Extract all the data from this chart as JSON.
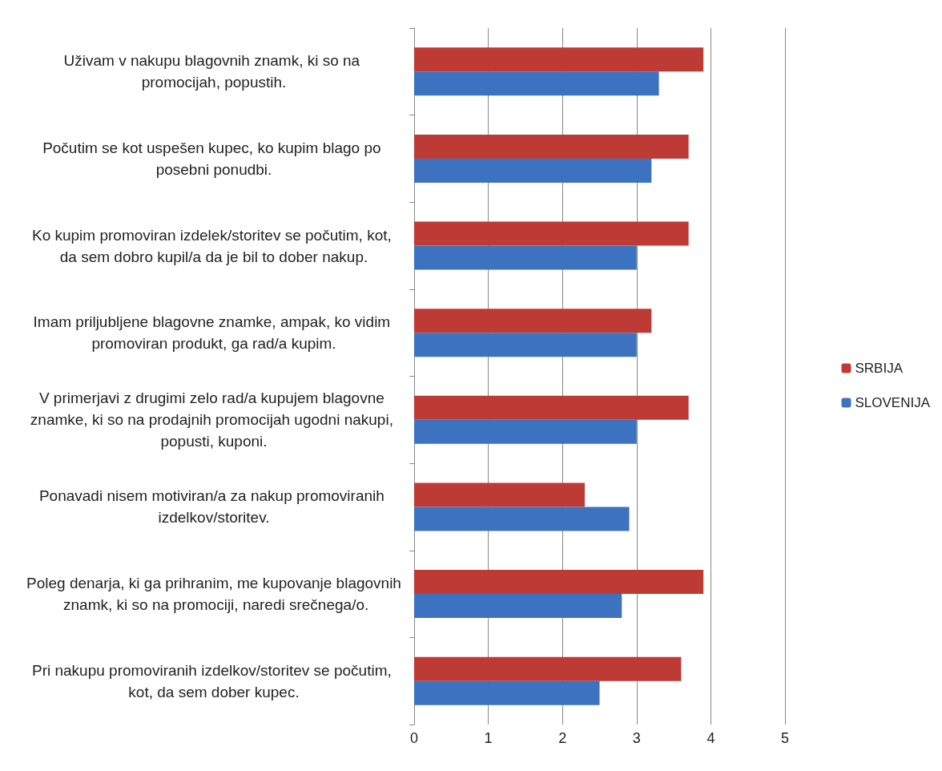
{
  "chart_data": {
    "type": "bar",
    "orientation": "horizontal",
    "categories": [
      "Uživam v nakupu blagovnih znamk, ki so na promocijah, popustih.",
      "Počutim se kot uspešen kupec, ko kupim blago po posebni ponudbi.",
      "Ko kupim promoviran izdelek/storitev se počutim, kot, da sem dobro kupil/a da je bil to dober nakup.",
      "Imam priljubljene blagovne znamke, ampak, ko vidim promoviran produkt, ga rad/a kupim.",
      "V primerjavi z drugimi zelo rad/a kupujem blagovne znamke, ki so na prodajnih promocijah ugodni nakupi, popusti, kuponi.",
      "Ponavadi nisem motiviran/a za nakup promoviranih izdelkov/storitev.",
      "Poleg denarja, ki ga prihranim, me kupovanje blagovnih znamk, ki so na promociji, naredi srečnega/o.",
      "Pri nakupu promoviranih izdelkov/storitev se počutim, kot, da sem dober kupec."
    ],
    "series": [
      {
        "name": "SRBIJA",
        "color": "#be3a34",
        "values": [
          3.9,
          3.7,
          3.7,
          3.2,
          3.7,
          2.3,
          3.9,
          3.6
        ]
      },
      {
        "name": "SLOVENIJA",
        "color": "#3d72c0",
        "values": [
          3.3,
          3.2,
          3.0,
          3.0,
          3.0,
          2.9,
          2.8,
          2.5
        ]
      }
    ],
    "xlim": [
      0,
      5
    ],
    "xticks": [
      0,
      1,
      2,
      3,
      4,
      5
    ],
    "grid": "x",
    "legend": "right"
  }
}
